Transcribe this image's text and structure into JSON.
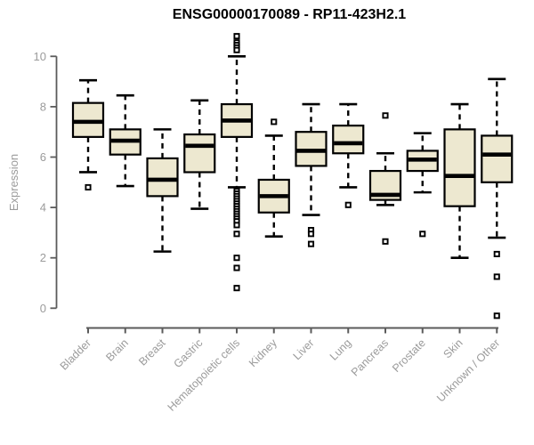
{
  "chart_data": {
    "type": "boxplot",
    "title": "ENSG00000170089 - RP11-423H2.1",
    "ylabel": "Expression",
    "xlabel": "",
    "ylim": [
      0,
      10
    ],
    "yticks": [
      0,
      2,
      4,
      6,
      8,
      10
    ],
    "grid": false,
    "legend": "none",
    "colors": {
      "box_fill": "#EDE8D0",
      "box_stroke": "#000000",
      "median": "#000000",
      "whisker": "#000000",
      "axis_line": "#5b5b5b",
      "tick_label": "#9b9b9b",
      "title": "#000000",
      "background": "#ffffff"
    },
    "categories": [
      "Bladder",
      "Brain",
      "Breast",
      "Gastric",
      "Hematopoietic cells",
      "Kidney",
      "Liver",
      "Lung",
      "Pancreas",
      "Prostate",
      "Skin",
      "Unknown / Other"
    ],
    "series": [
      {
        "category": "Bladder",
        "whisker_low": 5.4,
        "q1": 6.8,
        "median": 7.4,
        "q3": 8.15,
        "whisker_high": 9.05,
        "outliers": [
          4.8
        ]
      },
      {
        "category": "Brain",
        "whisker_low": 4.85,
        "q1": 6.1,
        "median": 6.65,
        "q3": 7.1,
        "whisker_high": 8.45,
        "outliers": []
      },
      {
        "category": "Breast",
        "whisker_low": 2.25,
        "q1": 4.45,
        "median": 5.1,
        "q3": 5.95,
        "whisker_high": 7.1,
        "outliers": []
      },
      {
        "category": "Gastric",
        "whisker_low": 3.95,
        "q1": 5.4,
        "median": 6.45,
        "q3": 6.9,
        "whisker_high": 8.25,
        "outliers": []
      },
      {
        "category": "Hematopoietic cells",
        "whisker_low": 4.8,
        "q1": 6.8,
        "median": 7.45,
        "q3": 8.1,
        "whisker_high": 10.0,
        "outliers": [
          10.8,
          10.55,
          10.45,
          10.35,
          10.25,
          4.65,
          4.55,
          4.45,
          4.35,
          4.25,
          4.15,
          4.05,
          3.95,
          3.85,
          3.75,
          3.65,
          3.55,
          3.45,
          3.3,
          2.95,
          2.0,
          1.6,
          0.8
        ]
      },
      {
        "category": "Kidney",
        "whisker_low": 2.85,
        "q1": 3.8,
        "median": 4.45,
        "q3": 5.1,
        "whisker_high": 6.85,
        "outliers": [
          7.4
        ]
      },
      {
        "category": "Liver",
        "whisker_low": 3.7,
        "q1": 5.65,
        "median": 6.25,
        "q3": 7.0,
        "whisker_high": 8.1,
        "outliers": [
          3.1,
          2.95,
          2.55
        ]
      },
      {
        "category": "Lung",
        "whisker_low": 4.8,
        "q1": 6.15,
        "median": 6.55,
        "q3": 7.25,
        "whisker_high": 8.1,
        "outliers": [
          4.1
        ]
      },
      {
        "category": "Pancreas",
        "whisker_low": 4.1,
        "q1": 4.3,
        "median": 4.5,
        "q3": 5.45,
        "whisker_high": 6.15,
        "outliers": [
          7.65,
          2.65
        ]
      },
      {
        "category": "Prostate",
        "whisker_low": 4.6,
        "q1": 5.45,
        "median": 5.9,
        "q3": 6.25,
        "whisker_high": 6.95,
        "outliers": [
          2.95
        ]
      },
      {
        "category": "Skin",
        "whisker_low": 2.0,
        "q1": 4.05,
        "median": 5.25,
        "q3": 7.1,
        "whisker_high": 8.1,
        "outliers": []
      },
      {
        "category": "Unknown / Other",
        "whisker_low": 2.8,
        "q1": 5.0,
        "median": 6.1,
        "q3": 6.85,
        "whisker_high": 9.1,
        "outliers": [
          2.15,
          1.25,
          -0.3
        ]
      }
    ]
  }
}
